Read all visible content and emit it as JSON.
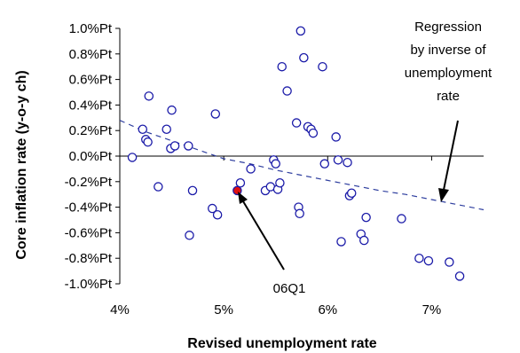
{
  "colors": {
    "marker": "#1a1aa8",
    "highlight": "#e01010",
    "regression": "#2f3f9f",
    "axis": "#000000"
  },
  "chart_data": {
    "type": "scatter",
    "title": "",
    "xlabel": "Revised unemployment rate",
    "ylabel": "Core inflation rate (y-o-y ch)",
    "xlim": [
      4,
      7.5
    ],
    "ylim": [
      -1.0,
      1.0
    ],
    "x_ticks": [
      4,
      5,
      6,
      7
    ],
    "x_tick_labels": [
      "4%",
      "5%",
      "6%",
      "7%"
    ],
    "y_ticks": [
      1.0,
      0.8,
      0.6,
      0.4,
      0.2,
      0.0,
      -0.2,
      -0.4,
      -0.6,
      -0.8,
      -1.0
    ],
    "y_tick_labels": [
      "1.0%Pt",
      "0.8%Pt",
      "0.6%Pt",
      "0.4%Pt",
      "0.2%Pt",
      "0.0%Pt",
      "-0.2%Pt",
      "-0.4%Pt",
      "-0.6%Pt",
      "-0.8%Pt",
      "-1.0%Pt"
    ],
    "grid": false,
    "legend": "none",
    "points": [
      {
        "x": 4.12,
        "y": -0.01
      },
      {
        "x": 4.22,
        "y": 0.21
      },
      {
        "x": 4.25,
        "y": 0.13
      },
      {
        "x": 4.27,
        "y": 0.11
      },
      {
        "x": 4.28,
        "y": 0.47
      },
      {
        "x": 4.37,
        "y": -0.24
      },
      {
        "x": 4.45,
        "y": 0.21
      },
      {
        "x": 4.49,
        "y": 0.06
      },
      {
        "x": 4.5,
        "y": 0.36
      },
      {
        "x": 4.53,
        "y": 0.08
      },
      {
        "x": 4.66,
        "y": 0.08
      },
      {
        "x": 4.67,
        "y": -0.62
      },
      {
        "x": 4.7,
        "y": -0.27
      },
      {
        "x": 4.89,
        "y": -0.41
      },
      {
        "x": 4.92,
        "y": 0.33
      },
      {
        "x": 4.94,
        "y": -0.46
      },
      {
        "x": 5.16,
        "y": -0.21
      },
      {
        "x": 5.26,
        "y": -0.1
      },
      {
        "x": 5.4,
        "y": -0.27
      },
      {
        "x": 5.45,
        "y": -0.24
      },
      {
        "x": 5.48,
        "y": -0.03
      },
      {
        "x": 5.5,
        "y": -0.06
      },
      {
        "x": 5.52,
        "y": -0.26
      },
      {
        "x": 5.54,
        "y": -0.21
      },
      {
        "x": 5.56,
        "y": 0.7
      },
      {
        "x": 5.61,
        "y": 0.51
      },
      {
        "x": 5.7,
        "y": 0.26
      },
      {
        "x": 5.72,
        "y": -0.4
      },
      {
        "x": 5.73,
        "y": -0.45
      },
      {
        "x": 5.74,
        "y": 0.98
      },
      {
        "x": 5.77,
        "y": 0.77
      },
      {
        "x": 5.81,
        "y": 0.23
      },
      {
        "x": 5.84,
        "y": 0.21
      },
      {
        "x": 5.86,
        "y": 0.18
      },
      {
        "x": 5.95,
        "y": 0.7
      },
      {
        "x": 5.97,
        "y": -0.06
      },
      {
        "x": 6.08,
        "y": 0.15
      },
      {
        "x": 6.1,
        "y": -0.03
      },
      {
        "x": 6.13,
        "y": -0.67
      },
      {
        "x": 6.19,
        "y": -0.05
      },
      {
        "x": 6.21,
        "y": -0.31
      },
      {
        "x": 6.23,
        "y": -0.29
      },
      {
        "x": 6.32,
        "y": -0.61
      },
      {
        "x": 6.35,
        "y": -0.66
      },
      {
        "x": 6.37,
        "y": -0.48
      },
      {
        "x": 6.71,
        "y": -0.49
      },
      {
        "x": 6.88,
        "y": -0.8
      },
      {
        "x": 6.97,
        "y": -0.82
      },
      {
        "x": 7.17,
        "y": -0.83
      },
      {
        "x": 7.27,
        "y": -0.94
      }
    ],
    "highlight_point": {
      "x": 5.13,
      "y": -0.27,
      "label": "06Q1"
    },
    "regression": {
      "label_lines": [
        "Regression",
        "by inverse of",
        "unemployment",
        "rate"
      ],
      "x": [
        4.0,
        4.25,
        4.5,
        4.75,
        5.0,
        5.25,
        5.5,
        5.75,
        6.0,
        6.25,
        6.5,
        6.75,
        7.0,
        7.25,
        7.5
      ],
      "y": [
        0.28,
        0.19,
        0.12,
        0.05,
        -0.02,
        -0.06,
        -0.11,
        -0.15,
        -0.19,
        -0.23,
        -0.27,
        -0.3,
        -0.34,
        -0.38,
        -0.42
      ]
    }
  }
}
